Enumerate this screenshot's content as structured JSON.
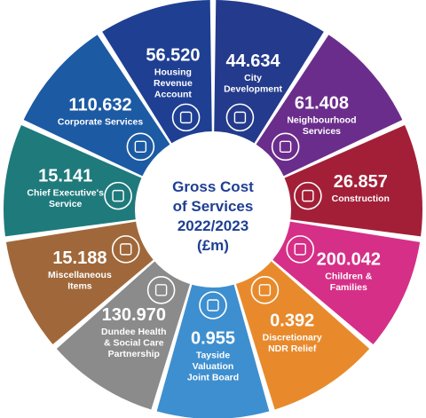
{
  "chart_data": {
    "type": "pie",
    "title_lines": [
      "Gross Cost",
      "of Services",
      "2022/2023",
      "(£m)"
    ],
    "slices": [
      {
        "value": "44.634",
        "label_lines": [
          "City",
          "Development"
        ],
        "color": "#243a8c",
        "icon": "city-map-icon"
      },
      {
        "value": "61.408",
        "label_lines": [
          "Neighbourhood",
          "Services"
        ],
        "color": "#6b2d8c",
        "icon": "neighbourhood-houses-icon"
      },
      {
        "value": "26.857",
        "label_lines": [
          "Construction"
        ],
        "color": "#a31f37",
        "icon": "brick-wall-icon"
      },
      {
        "value": "200.042",
        "label_lines": [
          "Children &",
          "Families"
        ],
        "color": "#d62f87",
        "icon": "family-group-icon"
      },
      {
        "value": "0.392",
        "label_lines": [
          "Discretionary",
          "NDR Relief"
        ],
        "color": "#e88a2c",
        "icon": "hand-pound-icon"
      },
      {
        "value": "0.955",
        "label_lines": [
          "Tayside",
          "Valuation",
          "Joint Board"
        ],
        "color": "#3e8fcf",
        "icon": "document-search-icon"
      },
      {
        "value": "130.970",
        "label_lines": [
          "Dundee Health",
          "& Social Care",
          "Partnership"
        ],
        "color": "#8b8b8b",
        "icon": "caring-hands-icon"
      },
      {
        "value": "15.188",
        "label_lines": [
          "Miscellaneous",
          "Items"
        ],
        "color": "#a0683a",
        "icon": "open-box-icon"
      },
      {
        "value": "15.141",
        "label_lines": [
          "Chief Executive's",
          "Service"
        ],
        "color": "#1f7a7c",
        "icon": "gear-cycle-icon"
      },
      {
        "value": "110.632",
        "label_lines": [
          "Corporate Services"
        ],
        "color": "#1c5aa4",
        "icon": "people-network-icon"
      },
      {
        "value": "56.520",
        "label_lines": [
          "Housing",
          "Revenue",
          "Account"
        ],
        "color": "#1f3f93",
        "icon": "house-pound-icon"
      }
    ]
  }
}
